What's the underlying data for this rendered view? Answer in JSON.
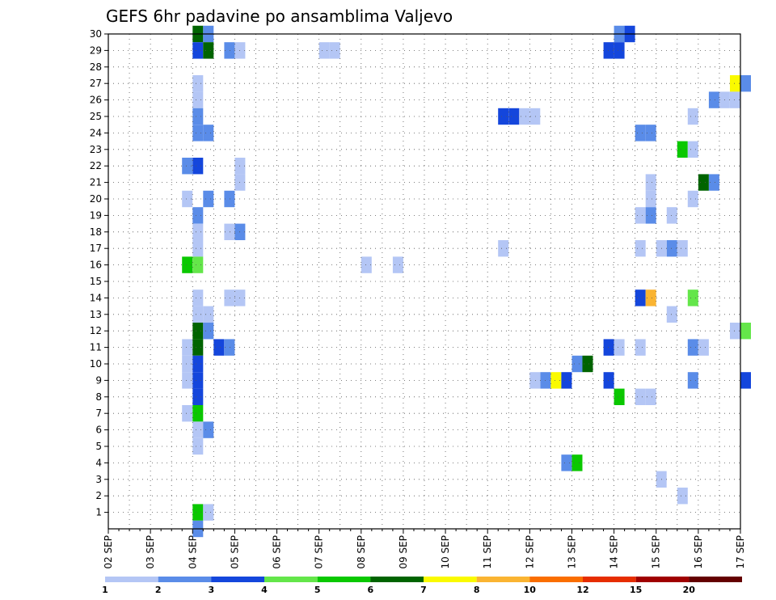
{
  "chart_data": {
    "type": "heatmap",
    "title": "GEFS 6hr padavine po ansamblima Valjevo",
    "x_axis": {
      "start": "02 SEP 00Z",
      "end": "17 SEP 00Z",
      "step_hours": 6,
      "tick_labels": [
        "02 SEP",
        "03 SEP",
        "04 SEP",
        "05 SEP",
        "06 SEP",
        "07 SEP",
        "08 SEP",
        "09 SEP",
        "10 SEP",
        "11 SEP",
        "12 SEP",
        "13 SEP",
        "14 SEP",
        "15 SEP",
        "16 SEP",
        "17 SEP"
      ]
    },
    "y_axis": {
      "range": [
        0,
        30
      ],
      "tick_labels": [
        "1",
        "2",
        "3",
        "4",
        "5",
        "6",
        "7",
        "8",
        "9",
        "10",
        "11",
        "12",
        "13",
        "14",
        "15",
        "16",
        "17",
        "18",
        "19",
        "20",
        "21",
        "22",
        "23",
        "24",
        "25",
        "26",
        "27",
        "28",
        "29",
        "30"
      ]
    },
    "grid": true,
    "legend": {
      "position": "bottom",
      "labels": [
        "1",
        "2",
        "3",
        "4",
        "5",
        "6",
        "7",
        "8",
        "10",
        "12",
        "15",
        "20"
      ],
      "colors": [
        "#b4c6f5",
        "#5a8ce8",
        "#1446dc",
        "#64e64a",
        "#0ac800",
        "#006400",
        "#fafa00",
        "#fab432",
        "#fa6e00",
        "#e62d00",
        "#a00000",
        "#640000"
      ]
    },
    "cells": [
      [
        30,
        "04 SEP 00Z",
        6
      ],
      [
        30,
        "04 SEP 06Z",
        2
      ],
      [
        30,
        "14 SEP 00Z",
        2
      ],
      [
        30,
        "14 SEP 06Z",
        3
      ],
      [
        29,
        "04 SEP 00Z",
        3
      ],
      [
        29,
        "04 SEP 06Z",
        6
      ],
      [
        29,
        "04 SEP 18Z",
        2
      ],
      [
        29,
        "05 SEP 00Z",
        1
      ],
      [
        29,
        "07 SEP 00Z",
        1
      ],
      [
        29,
        "07 SEP 06Z",
        1
      ],
      [
        29,
        "13 SEP 18Z",
        3
      ],
      [
        29,
        "14 SEP 00Z",
        3
      ],
      [
        27,
        "04 SEP 00Z",
        1
      ],
      [
        27,
        "16 SEP 18Z",
        7
      ],
      [
        27,
        "17 SEP 00Z",
        2
      ],
      [
        26,
        "04 SEP 00Z",
        1
      ],
      [
        26,
        "16 SEP 06Z",
        2
      ],
      [
        26,
        "16 SEP 12Z",
        1
      ],
      [
        26,
        "16 SEP 18Z",
        1
      ],
      [
        25,
        "04 SEP 00Z",
        2
      ],
      [
        25,
        "11 SEP 06Z",
        3
      ],
      [
        25,
        "11 SEP 12Z",
        3
      ],
      [
        25,
        "11 SEP 18Z",
        1
      ],
      [
        25,
        "12 SEP 00Z",
        1
      ],
      [
        25,
        "15 SEP 18Z",
        1
      ],
      [
        24,
        "04 SEP 00Z",
        2
      ],
      [
        24,
        "04 SEP 06Z",
        2
      ],
      [
        24,
        "14 SEP 12Z",
        2
      ],
      [
        24,
        "14 SEP 18Z",
        2
      ],
      [
        23,
        "15 SEP 12Z",
        5
      ],
      [
        23,
        "15 SEP 18Z",
        1
      ],
      [
        22,
        "03 SEP 18Z",
        2
      ],
      [
        22,
        "04 SEP 00Z",
        3
      ],
      [
        22,
        "05 SEP 00Z",
        1
      ],
      [
        21,
        "05 SEP 00Z",
        1
      ],
      [
        21,
        "16 SEP 00Z",
        6
      ],
      [
        21,
        "16 SEP 06Z",
        2
      ],
      [
        21,
        "14 SEP 18Z",
        1
      ],
      [
        20,
        "03 SEP 18Z",
        1
      ],
      [
        20,
        "04 SEP 06Z",
        2
      ],
      [
        20,
        "04 SEP 18Z",
        2
      ],
      [
        20,
        "14 SEP 18Z",
        1
      ],
      [
        20,
        "15 SEP 18Z",
        1
      ],
      [
        19,
        "04 SEP 00Z",
        2
      ],
      [
        19,
        "14 SEP 12Z",
        1
      ],
      [
        19,
        "14 SEP 18Z",
        2
      ],
      [
        19,
        "15 SEP 06Z",
        1
      ],
      [
        18,
        "04 SEP 00Z",
        1
      ],
      [
        18,
        "04 SEP 18Z",
        1
      ],
      [
        18,
        "05 SEP 00Z",
        2
      ],
      [
        17,
        "04 SEP 00Z",
        1
      ],
      [
        17,
        "11 SEP 06Z",
        1
      ],
      [
        17,
        "14 SEP 12Z",
        1
      ],
      [
        17,
        "15 SEP 00Z",
        1
      ],
      [
        17,
        "15 SEP 06Z",
        2
      ],
      [
        17,
        "15 SEP 12Z",
        1
      ],
      [
        16,
        "03 SEP 18Z",
        5
      ],
      [
        16,
        "04 SEP 00Z",
        4
      ],
      [
        16,
        "08 SEP 00Z",
        1
      ],
      [
        16,
        "08 SEP 18Z",
        1
      ],
      [
        14,
        "04 SEP 00Z",
        1
      ],
      [
        14,
        "04 SEP 18Z",
        1
      ],
      [
        14,
        "05 SEP 00Z",
        1
      ],
      [
        14,
        "14 SEP 12Z",
        3
      ],
      [
        14,
        "14 SEP 18Z",
        8
      ],
      [
        14,
        "15 SEP 18Z",
        4
      ],
      [
        13,
        "04 SEP 00Z",
        1
      ],
      [
        13,
        "04 SEP 06Z",
        1
      ],
      [
        13,
        "15 SEP 06Z",
        1
      ],
      [
        12,
        "04 SEP 00Z",
        6
      ],
      [
        12,
        "04 SEP 06Z",
        2
      ],
      [
        12,
        "16 SEP 18Z",
        1
      ],
      [
        12,
        "17 SEP 00Z",
        4
      ],
      [
        11,
        "03 SEP 18Z",
        1
      ],
      [
        11,
        "04 SEP 00Z",
        6
      ],
      [
        11,
        "04 SEP 12Z",
        3
      ],
      [
        11,
        "04 SEP 18Z",
        2
      ],
      [
        11,
        "13 SEP 18Z",
        3
      ],
      [
        11,
        "14 SEP 00Z",
        1
      ],
      [
        11,
        "14 SEP 12Z",
        1
      ],
      [
        11,
        "15 SEP 18Z",
        2
      ],
      [
        11,
        "16 SEP 00Z",
        1
      ],
      [
        10,
        "03 SEP 18Z",
        1
      ],
      [
        10,
        "04 SEP 00Z",
        3
      ],
      [
        10,
        "13 SEP 00Z",
        2
      ],
      [
        10,
        "13 SEP 06Z",
        6
      ],
      [
        9,
        "03 SEP 18Z",
        1
      ],
      [
        9,
        "04 SEP 00Z",
        3
      ],
      [
        9,
        "12 SEP 00Z",
        1
      ],
      [
        9,
        "12 SEP 06Z",
        2
      ],
      [
        9,
        "12 SEP 12Z",
        7
      ],
      [
        9,
        "12 SEP 18Z",
        3
      ],
      [
        9,
        "13 SEP 18Z",
        3
      ],
      [
        9,
        "15 SEP 18Z",
        2
      ],
      [
        9,
        "17 SEP 00Z",
        3
      ],
      [
        8,
        "04 SEP 00Z",
        3
      ],
      [
        8,
        "14 SEP 00Z",
        5
      ],
      [
        8,
        "14 SEP 12Z",
        1
      ],
      [
        8,
        "14 SEP 18Z",
        1
      ],
      [
        7,
        "03 SEP 18Z",
        1
      ],
      [
        7,
        "04 SEP 00Z",
        5
      ],
      [
        6,
        "04 SEP 00Z",
        1
      ],
      [
        6,
        "04 SEP 06Z",
        2
      ],
      [
        5,
        "04 SEP 00Z",
        1
      ],
      [
        4,
        "12 SEP 18Z",
        2
      ],
      [
        4,
        "13 SEP 00Z",
        5
      ],
      [
        3,
        "15 SEP 00Z",
        1
      ],
      [
        2,
        "15 SEP 12Z",
        1
      ],
      [
        1,
        "04 SEP 00Z",
        5
      ],
      [
        1,
        "04 SEP 06Z",
        1
      ],
      [
        0,
        "04 SEP 00Z",
        2
      ]
    ]
  }
}
